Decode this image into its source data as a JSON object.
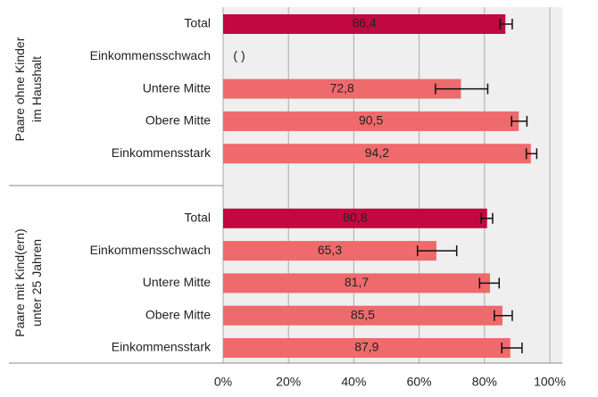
{
  "chart_data": {
    "type": "bar",
    "groups": [
      {
        "label": [
          "Paare ohne Kinder",
          "im Haushalt"
        ]
      },
      {
        "label": [
          "Paare mit Kind(ern)",
          "unter 25 Jahren"
        ]
      }
    ],
    "categories": [
      "Total",
      "Einkommensschwach",
      "Untere Mitte",
      "Obere Mitte",
      "Einkommensstark",
      "Total",
      "Einkommensschwach",
      "Untere Mitte",
      "Obere Mitte",
      "Einkommensstark"
    ],
    "values": [
      86.4,
      null,
      72.8,
      90.5,
      94.2,
      80.8,
      65.3,
      81.7,
      85.5,
      87.9
    ],
    "value_labels": [
      "86,4",
      "( )",
      "72,8",
      "90,5",
      "94,2",
      "80,8",
      "65,3",
      "81,7",
      "85,5",
      "87,9"
    ],
    "ci_low": [
      84.8,
      null,
      65,
      88.3,
      92.8,
      79,
      59.5,
      78.5,
      83,
      85.3
    ],
    "ci_high": [
      88.5,
      null,
      81,
      93,
      96,
      82.5,
      71.5,
      84.5,
      88.5,
      91.5
    ],
    "colors": [
      "#c1093f",
      "#ef6a6c",
      "#ef6a6c",
      "#ef6a6c",
      "#ef6a6c",
      "#c1093f",
      "#ef6a6c",
      "#ef6a6c",
      "#ef6a6c",
      "#ef6a6c"
    ],
    "xlim": [
      0,
      100
    ],
    "xticks": [
      {
        "value": 0,
        "label": "0%"
      },
      {
        "value": 20,
        "label": "20%"
      },
      {
        "value": 40,
        "label": "40%"
      },
      {
        "value": 60,
        "label": "60%"
      },
      {
        "value": 80,
        "label": "80%"
      },
      {
        "value": 100,
        "label": "100%"
      }
    ],
    "grid": true
  }
}
